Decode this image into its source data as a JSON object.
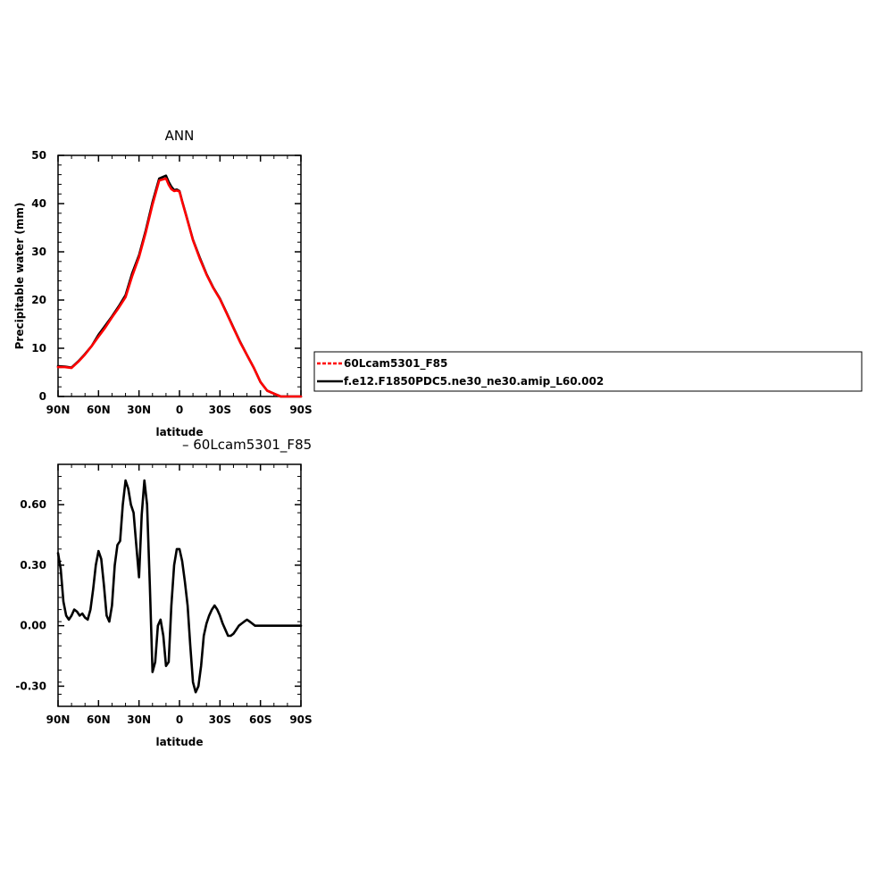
{
  "chart_data": [
    {
      "type": "line",
      "title": "ANN",
      "xlabel": "latitude",
      "ylabel": "Precipitable water (mm)",
      "xlim": [
        90,
        -90
      ],
      "ylim": [
        0,
        50
      ],
      "x_ticks": [
        90,
        60,
        30,
        0,
        -30,
        -60,
        -90
      ],
      "x_tick_labels": [
        "90N",
        "60N",
        "30N",
        "0",
        "30S",
        "60S",
        "90S"
      ],
      "y_ticks": [
        0,
        10,
        20,
        30,
        40,
        50
      ],
      "y_tick_labels": [
        "0",
        "10",
        "20",
        "30",
        "40",
        "50"
      ],
      "legend": "right-outside",
      "series": [
        {
          "name": "f.e12.F1850PDC5.ne30_ne30.amip_L60.002",
          "color": "#000000",
          "x": [
            90,
            85,
            80,
            75,
            70,
            65,
            60,
            55,
            50,
            45,
            40,
            35,
            30,
            25,
            20,
            15,
            10,
            8,
            6,
            4,
            2,
            0,
            -2,
            -5,
            -8,
            -10,
            -15,
            -20,
            -25,
            -30,
            -35,
            -40,
            -45,
            -50,
            -55,
            -60,
            -65,
            -70,
            -75,
            -80,
            -85,
            -90
          ],
          "y": [
            6.3,
            6.2,
            6.0,
            7.3,
            8.8,
            10.5,
            12.8,
            14.7,
            16.6,
            18.7,
            21.0,
            25.6,
            29.3,
            34.4,
            40.3,
            45.2,
            45.8,
            44.5,
            43.5,
            42.8,
            42.9,
            42.6,
            40.5,
            37.5,
            34.5,
            32.5,
            28.8,
            25.4,
            22.6,
            20.3,
            17.3,
            14.3,
            11.3,
            8.6,
            6.0,
            3.0,
            1.2,
            0.6,
            0.0,
            0.0,
            0.0,
            0.0
          ]
        },
        {
          "name": "60Lcam5301_F85",
          "color": "#ff0000",
          "x": [
            90,
            85,
            80,
            75,
            70,
            65,
            60,
            55,
            50,
            45,
            40,
            35,
            30,
            25,
            20,
            15,
            10,
            8,
            6,
            4,
            2,
            0,
            -2,
            -5,
            -8,
            -10,
            -15,
            -20,
            -25,
            -30,
            -35,
            -40,
            -45,
            -50,
            -55,
            -60,
            -65,
            -70,
            -75,
            -80,
            -85,
            -90
          ],
          "y": [
            6.1,
            6.1,
            5.9,
            7.2,
            8.7,
            10.5,
            12.4,
            14.3,
            16.4,
            18.4,
            20.6,
            25.0,
            28.9,
            34.0,
            39.8,
            44.8,
            45.2,
            43.9,
            43.0,
            42.6,
            42.7,
            42.5,
            40.4,
            37.4,
            34.4,
            32.4,
            28.6,
            25.3,
            22.5,
            20.2,
            17.2,
            14.2,
            11.2,
            8.6,
            6.0,
            3.0,
            1.2,
            0.6,
            0.0,
            0.0,
            0.0,
            0.0
          ]
        }
      ]
    },
    {
      "type": "line",
      "title": "– 60Lcam5301_F85",
      "xlabel": "latitude",
      "ylabel": "",
      "xlim": [
        90,
        -90
      ],
      "ylim": [
        -0.4,
        0.8
      ],
      "x_ticks": [
        90,
        60,
        30,
        0,
        -30,
        -60,
        -90
      ],
      "x_tick_labels": [
        "90N",
        "60N",
        "30N",
        "0",
        "30S",
        "60S",
        "90S"
      ],
      "y_ticks": [
        -0.3,
        0.0,
        0.3,
        0.6
      ],
      "y_tick_labels": [
        "-0.30",
        "0.00",
        "0.30",
        "0.60"
      ],
      "series": [
        {
          "name": "",
          "color": "#000000",
          "x": [
            90,
            88,
            86,
            84,
            82,
            80,
            78,
            76,
            74,
            72,
            70,
            68,
            66,
            64,
            62,
            60,
            58,
            56,
            54,
            52,
            50,
            48,
            46,
            44,
            42,
            40,
            38,
            36,
            34,
            32,
            30,
            28,
            26,
            24,
            22,
            20,
            18,
            16,
            14,
            12,
            10,
            8,
            6,
            4,
            2,
            0,
            -2,
            -4,
            -6,
            -8,
            -10,
            -12,
            -14,
            -16,
            -18,
            -20,
            -22,
            -24,
            -26,
            -28,
            -30,
            -32,
            -34,
            -36,
            -38,
            -40,
            -42,
            -44,
            -46,
            -48,
            -50,
            -52,
            -54,
            -56,
            -58,
            -60,
            -62,
            -64,
            -66,
            -68,
            -70,
            -72,
            -74,
            -76,
            -78,
            -80,
            -82,
            -84,
            -86,
            -88,
            -90
          ],
          "y": [
            0.36,
            0.28,
            0.12,
            0.05,
            0.03,
            0.05,
            0.08,
            0.07,
            0.05,
            0.06,
            0.04,
            0.03,
            0.08,
            0.18,
            0.3,
            0.37,
            0.33,
            0.2,
            0.05,
            0.02,
            0.1,
            0.3,
            0.4,
            0.42,
            0.6,
            0.72,
            0.68,
            0.6,
            0.56,
            0.4,
            0.24,
            0.55,
            0.72,
            0.6,
            0.2,
            -0.23,
            -0.18,
            0.0,
            0.03,
            -0.05,
            -0.2,
            -0.18,
            0.1,
            0.3,
            0.38,
            0.38,
            0.32,
            0.22,
            0.1,
            -0.1,
            -0.28,
            -0.33,
            -0.3,
            -0.2,
            -0.05,
            0.01,
            0.05,
            0.08,
            0.1,
            0.08,
            0.05,
            0.01,
            -0.02,
            -0.05,
            -0.05,
            -0.04,
            -0.02,
            0.0,
            0.01,
            0.02,
            0.03,
            0.02,
            0.01,
            0.0,
            0.0,
            0.0,
            0.0,
            0.0,
            0.0,
            0.0,
            0.0,
            0.0,
            0.0,
            0.0,
            0.0,
            0.0,
            0.0,
            0.0,
            0.0,
            0.0,
            0.0
          ]
        }
      ]
    }
  ]
}
